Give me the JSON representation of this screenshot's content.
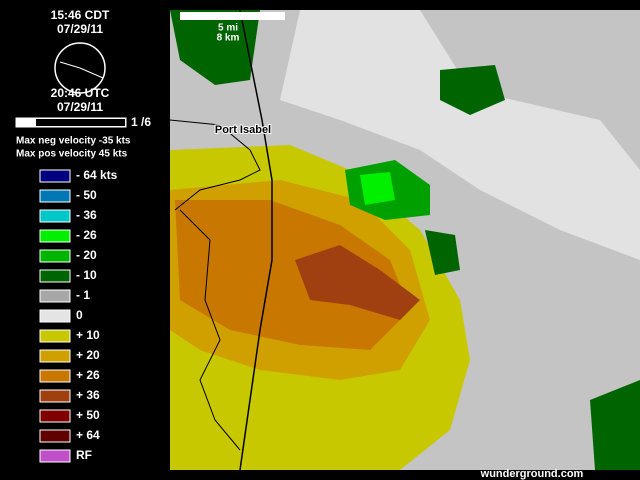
{
  "header": {
    "local_time": "15:46 CDT",
    "local_date": "07/29/11",
    "utc_time": "20:46 UTC",
    "utc_date": "07/29/11"
  },
  "frame": "1 /6",
  "velocity": {
    "max_neg": "Max neg velocity -35 kts",
    "max_pos": "Max pos velocity 45 kts"
  },
  "legend": [
    {
      "label": "- 64 kts",
      "color": "#000080"
    },
    {
      "label": "- 50",
      "color": "#0078b4"
    },
    {
      "label": "- 36",
      "color": "#00c8c8"
    },
    {
      "label": "- 26",
      "color": "#00f000"
    },
    {
      "label": "- 20",
      "color": "#00b400"
    },
    {
      "label": "- 10",
      "color": "#006400"
    },
    {
      "label": "- 1",
      "color": "#a8a8a8"
    },
    {
      "label": "0",
      "color": "#e4e4e4"
    },
    {
      "label": "+ 10",
      "color": "#c8c800"
    },
    {
      "label": "+ 20",
      "color": "#d0a000"
    },
    {
      "label": "+ 26",
      "color": "#c87800"
    },
    {
      "label": "+ 36",
      "color": "#a04010"
    },
    {
      "label": "+ 50",
      "color": "#800000"
    },
    {
      "label": "+ 64",
      "color": "#600000"
    },
    {
      "label": "RF",
      "color": "#c050c8"
    }
  ],
  "scale": {
    "miles": "5 mi",
    "km": "8 km"
  },
  "place": "Port Isabel",
  "footer": "wunderground.com"
}
